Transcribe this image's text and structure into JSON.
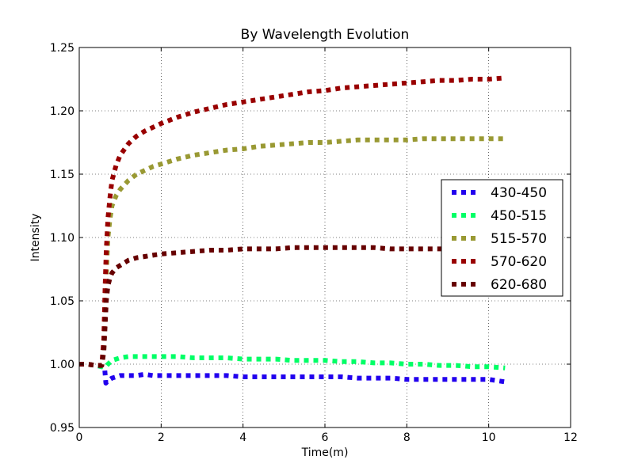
{
  "chart_data": {
    "type": "line",
    "title": "By Wavelength Evolution",
    "xlabel": "Time(m)",
    "ylabel": "Intensity",
    "xlim": [
      0,
      12
    ],
    "ylim": [
      0.95,
      1.25
    ],
    "xticks": [
      "0",
      "2",
      "4",
      "6",
      "8",
      "10",
      "12"
    ],
    "yticks": [
      "0.95",
      "1.00",
      "1.05",
      "1.10",
      "1.15",
      "1.20",
      "1.25"
    ],
    "grid": true,
    "legend_position": "right",
    "series": [
      {
        "name": "430-450",
        "color": "#2200ee",
        "x": [
          0,
          0.2,
          0.4,
          0.55,
          0.62,
          0.65,
          0.7,
          0.8,
          1.0,
          1.2,
          1.4,
          1.6,
          1.8,
          2.0,
          2.4,
          2.8,
          3.2,
          3.6,
          4.0,
          4.4,
          4.8,
          5.2,
          5.6,
          6.0,
          6.4,
          6.8,
          7.2,
          7.6,
          8.0,
          8.4,
          8.8,
          9.2,
          9.6,
          10.0,
          10.4
        ],
        "y": [
          1.0,
          1.0,
          0.999,
          0.998,
          0.997,
          0.985,
          0.987,
          0.989,
          0.991,
          0.991,
          0.991,
          0.992,
          0.991,
          0.991,
          0.991,
          0.991,
          0.991,
          0.991,
          0.99,
          0.99,
          0.99,
          0.99,
          0.99,
          0.99,
          0.99,
          0.989,
          0.989,
          0.989,
          0.988,
          0.988,
          0.988,
          0.988,
          0.988,
          0.988,
          0.986
        ]
      },
      {
        "name": "450-515",
        "color": "#00ff66",
        "x": [
          0,
          0.2,
          0.4,
          0.55,
          0.62,
          0.65,
          0.7,
          0.8,
          1.0,
          1.2,
          1.4,
          1.6,
          1.8,
          2.0,
          2.4,
          2.8,
          3.2,
          3.6,
          4.0,
          4.4,
          4.8,
          5.2,
          5.6,
          6.0,
          6.4,
          6.8,
          7.2,
          7.6,
          8.0,
          8.4,
          8.8,
          9.2,
          9.6,
          10.0,
          10.4
        ],
        "y": [
          1.0,
          1.0,
          0.999,
          0.998,
          0.998,
          0.998,
          1.0,
          1.003,
          1.005,
          1.006,
          1.006,
          1.006,
          1.006,
          1.006,
          1.006,
          1.005,
          1.005,
          1.005,
          1.004,
          1.004,
          1.004,
          1.003,
          1.003,
          1.003,
          1.002,
          1.002,
          1.001,
          1.001,
          1.0,
          1.0,
          0.999,
          0.999,
          0.998,
          0.998,
          0.997
        ]
      },
      {
        "name": "515-570",
        "color": "#999933",
        "x": [
          0,
          0.2,
          0.4,
          0.55,
          0.6,
          0.63,
          0.66,
          0.7,
          0.75,
          0.8,
          0.9,
          1.0,
          1.2,
          1.4,
          1.6,
          1.8,
          2.0,
          2.4,
          2.8,
          3.2,
          3.6,
          4.0,
          4.4,
          4.8,
          5.2,
          5.6,
          6.0,
          6.4,
          6.8,
          7.2,
          7.6,
          8.0,
          8.4,
          8.8,
          9.2,
          9.6,
          10.0,
          10.4
        ],
        "y": [
          1.0,
          1.0,
          0.999,
          0.999,
          1.01,
          1.04,
          1.07,
          1.1,
          1.115,
          1.125,
          1.133,
          1.138,
          1.145,
          1.15,
          1.153,
          1.156,
          1.158,
          1.162,
          1.165,
          1.167,
          1.169,
          1.17,
          1.172,
          1.173,
          1.174,
          1.175,
          1.175,
          1.176,
          1.177,
          1.177,
          1.177,
          1.177,
          1.178,
          1.178,
          1.178,
          1.178,
          1.178,
          1.178
        ]
      },
      {
        "name": "570-620",
        "color": "#990000",
        "x": [
          0,
          0.2,
          0.4,
          0.55,
          0.6,
          0.63,
          0.66,
          0.7,
          0.75,
          0.8,
          0.9,
          1.0,
          1.2,
          1.4,
          1.6,
          1.8,
          2.0,
          2.4,
          2.8,
          3.2,
          3.6,
          4.0,
          4.4,
          4.8,
          5.2,
          5.6,
          6.0,
          6.4,
          6.8,
          7.2,
          7.6,
          8.0,
          8.4,
          8.8,
          9.2,
          9.6,
          10.0,
          10.4
        ],
        "y": [
          1.0,
          1.0,
          0.999,
          0.999,
          1.02,
          1.06,
          1.09,
          1.115,
          1.132,
          1.145,
          1.157,
          1.165,
          1.174,
          1.18,
          1.184,
          1.187,
          1.19,
          1.195,
          1.199,
          1.202,
          1.205,
          1.207,
          1.209,
          1.211,
          1.213,
          1.215,
          1.216,
          1.218,
          1.219,
          1.22,
          1.221,
          1.222,
          1.223,
          1.224,
          1.224,
          1.225,
          1.225,
          1.226
        ]
      },
      {
        "name": "620-680",
        "color": "#660000",
        "x": [
          0,
          0.2,
          0.4,
          0.55,
          0.6,
          0.63,
          0.66,
          0.7,
          0.75,
          0.8,
          0.9,
          1.0,
          1.2,
          1.4,
          1.6,
          1.8,
          2.0,
          2.4,
          2.8,
          3.2,
          3.6,
          4.0,
          4.4,
          4.8,
          5.2,
          5.6,
          6.0,
          6.4,
          6.8,
          7.2,
          7.6,
          8.0,
          8.4,
          8.8,
          9.2,
          9.6,
          10.0,
          10.4
        ],
        "y": [
          1.0,
          1.0,
          0.999,
          0.999,
          1.01,
          1.03,
          1.05,
          1.062,
          1.068,
          1.072,
          1.076,
          1.078,
          1.082,
          1.084,
          1.085,
          1.086,
          1.087,
          1.088,
          1.089,
          1.09,
          1.09,
          1.091,
          1.091,
          1.091,
          1.092,
          1.092,
          1.092,
          1.092,
          1.092,
          1.092,
          1.091,
          1.091,
          1.091,
          1.091,
          1.091,
          1.091,
          1.091,
          1.091
        ]
      }
    ]
  }
}
